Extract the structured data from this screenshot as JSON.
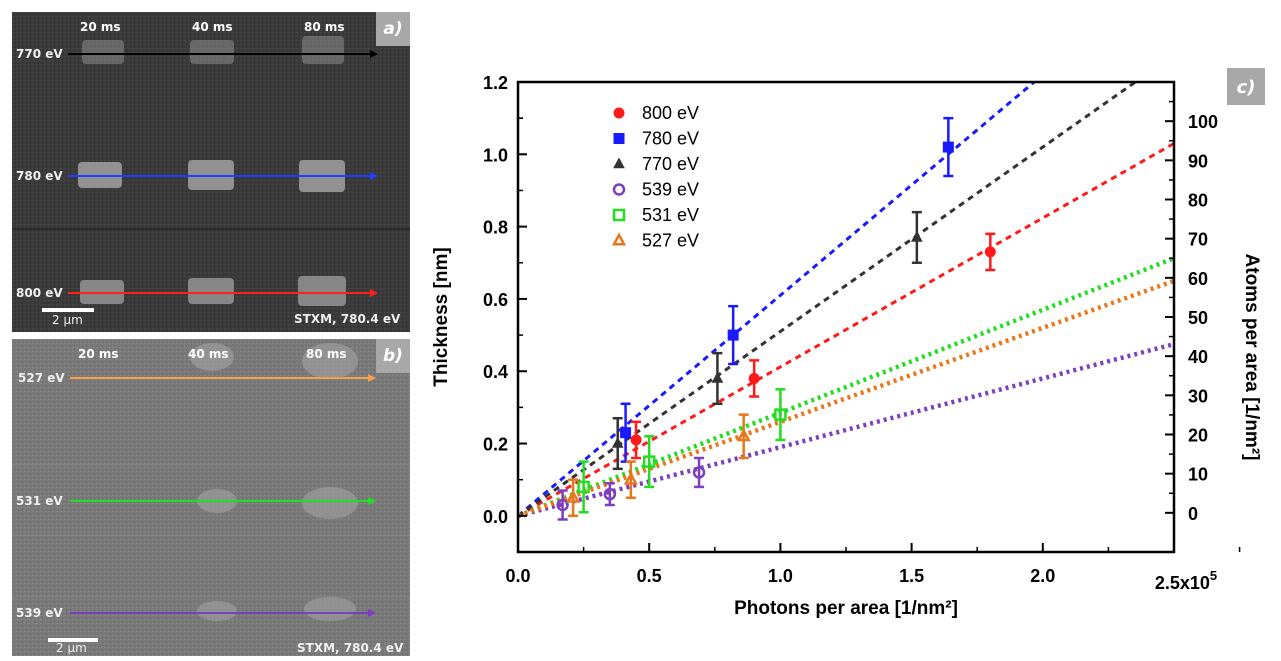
{
  "panel_a": {
    "tag": "a)",
    "dwell_times": [
      "20 ms",
      "40 ms",
      "80 ms"
    ],
    "rows": [
      {
        "label": "770 eV",
        "color": "#000000"
      },
      {
        "label": "780 eV",
        "color": "#1f3fff"
      },
      {
        "label": "800 eV",
        "color": "#ff2020"
      }
    ],
    "scale_bar": "2 µm",
    "caption": "STXM, 780.4 eV"
  },
  "panel_b": {
    "tag": "b)",
    "dwell_times": [
      "20 ms",
      "40 ms",
      "80 ms"
    ],
    "rows": [
      {
        "label": "527 eV",
        "color": "#f5a14a"
      },
      {
        "label": "531 eV",
        "color": "#22dd22"
      },
      {
        "label": "539 eV",
        "color": "#7b3fbf"
      }
    ],
    "scale_bar": "2 µm",
    "caption": "STXM, 780.4 eV"
  },
  "panel_c_tag": "c)",
  "chart_data": {
    "type": "scatter",
    "xlabel": "Photons per area [1/nm²]",
    "ylabel": "Thickness [nm]",
    "y2label": "Atoms per area [1/nm²]",
    "x_multiplier": "x10",
    "x_multiplier_exp": "5",
    "xlim": [
      0,
      2.5
    ],
    "ylim": [
      -0.1,
      1.2
    ],
    "y2lim": [
      -10,
      110
    ],
    "x_ticks": [
      "0.0",
      "0.5",
      "1.0",
      "1.5",
      "2.0",
      "2.5"
    ],
    "y_ticks": [
      "0.0",
      "0.2",
      "0.4",
      "0.6",
      "0.8",
      "1.0",
      "1.2"
    ],
    "y2_ticks": [
      "0",
      "10",
      "20",
      "30",
      "40",
      "50",
      "60",
      "70",
      "80",
      "90",
      "100"
    ],
    "legend_position": "top-left",
    "series": [
      {
        "name": "800 eV",
        "color": "#ff1a1a",
        "marker": "circle",
        "filled": true,
        "line": "dashed",
        "slope": 0.412,
        "points": [
          {
            "x": 0.45,
            "y": 0.21,
            "err": 0.05
          },
          {
            "x": 0.9,
            "y": 0.38,
            "err": 0.05
          },
          {
            "x": 1.8,
            "y": 0.73,
            "err": 0.05
          }
        ]
      },
      {
        "name": "780 eV",
        "color": "#1a1aff",
        "marker": "square",
        "filled": true,
        "line": "dashed",
        "slope": 0.61,
        "points": [
          {
            "x": 0.41,
            "y": 0.23,
            "err": 0.08
          },
          {
            "x": 0.82,
            "y": 0.5,
            "err": 0.08
          },
          {
            "x": 1.64,
            "y": 1.02,
            "err": 0.08
          }
        ]
      },
      {
        "name": "770 eV",
        "color": "#333333",
        "marker": "triangle",
        "filled": true,
        "line": "dashed",
        "slope": 0.51,
        "points": [
          {
            "x": 0.38,
            "y": 0.2,
            "err": 0.07
          },
          {
            "x": 0.76,
            "y": 0.38,
            "err": 0.07
          },
          {
            "x": 1.52,
            "y": 0.77,
            "err": 0.07
          }
        ]
      },
      {
        "name": "539 eV",
        "color": "#7b3fbf",
        "marker": "circle",
        "filled": false,
        "line": "dotted",
        "slope": 0.19,
        "points": [
          {
            "x": 0.17,
            "y": 0.03,
            "err": 0.04
          },
          {
            "x": 0.35,
            "y": 0.06,
            "err": 0.03
          },
          {
            "x": 0.69,
            "y": 0.12,
            "err": 0.04
          }
        ]
      },
      {
        "name": "531 eV",
        "color": "#22dd22",
        "marker": "square",
        "filled": false,
        "line": "dotted",
        "slope": 0.285,
        "points": [
          {
            "x": 0.25,
            "y": 0.08,
            "err": 0.07
          },
          {
            "x": 0.5,
            "y": 0.15,
            "err": 0.07
          },
          {
            "x": 1.0,
            "y": 0.28,
            "err": 0.07
          }
        ]
      },
      {
        "name": "527 eV",
        "color": "#e8761a",
        "marker": "triangle",
        "filled": false,
        "line": "dotted",
        "slope": 0.26,
        "points": [
          {
            "x": 0.21,
            "y": 0.05,
            "err": 0.05
          },
          {
            "x": 0.43,
            "y": 0.1,
            "err": 0.05
          },
          {
            "x": 0.86,
            "y": 0.22,
            "err": 0.06
          }
        ]
      }
    ]
  }
}
